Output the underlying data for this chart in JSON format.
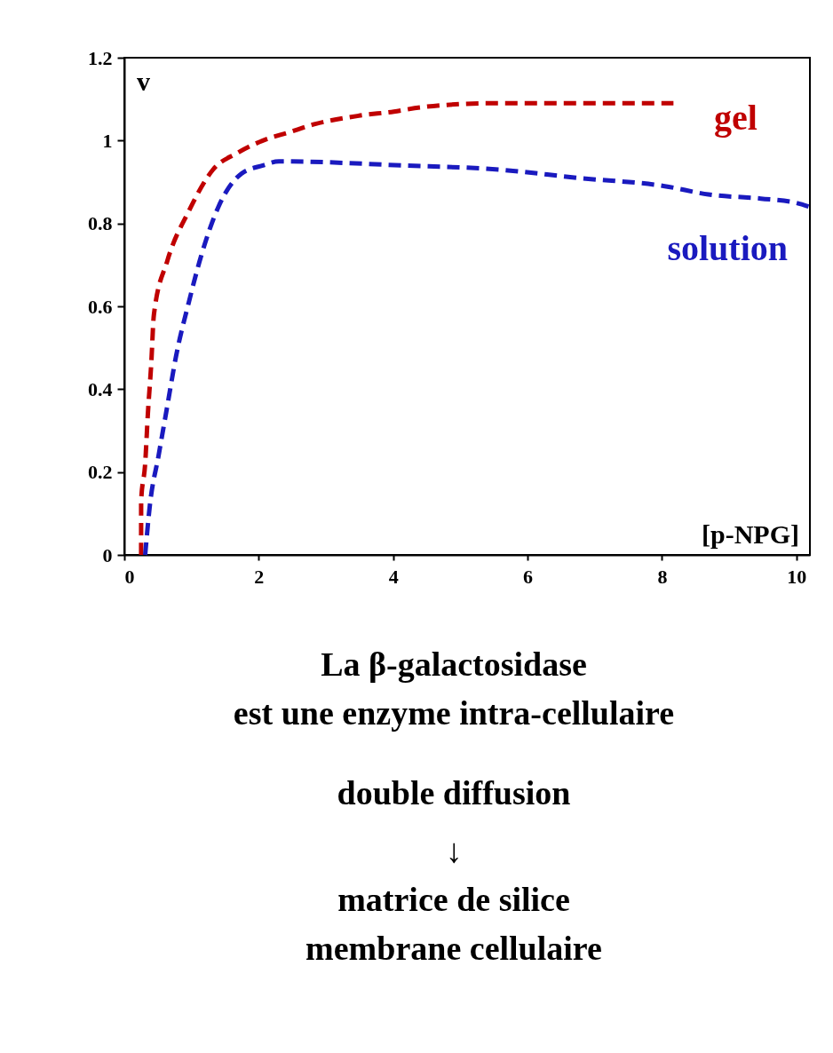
{
  "chart_data": {
    "type": "line",
    "xlabel": "[p-NPG]",
    "ylabel": "v",
    "xlim": [
      0,
      10.2
    ],
    "xticks": [
      0,
      2,
      4,
      6,
      8,
      10
    ],
    "ylim": [
      0,
      1.2
    ],
    "yticks": [
      0,
      0.2,
      0.4,
      0.6,
      0.8,
      1,
      1.2
    ],
    "grid": false,
    "legend": false,
    "line_style": "dashed",
    "marker": "none",
    "series": [
      {
        "name": "gel",
        "color": "#c00000",
        "x": [
          0.25,
          0.25,
          0.31,
          0.35,
          0.4,
          0.44,
          0.64,
          0.96,
          1.32,
          1.68,
          2.06,
          2.45,
          2.84,
          3.49,
          4.01,
          4.4,
          5.44,
          8.17
        ],
        "values": [
          0,
          0.13,
          0.22,
          0.34,
          0.46,
          0.58,
          0.71,
          0.83,
          0.93,
          0.97,
          1.0,
          1.02,
          1.04,
          1.06,
          1.07,
          1.08,
          1.09,
          1.09
        ]
      },
      {
        "name": "solution",
        "color": "#1a1abf",
        "x": [
          0.31,
          0.38,
          0.51,
          0.64,
          0.77,
          0.96,
          1.14,
          1.4,
          1.74,
          2.06,
          2.3,
          4.14,
          5.57,
          6.74,
          8.04,
          8.69,
          9.47,
          9.99,
          10.2
        ],
        "values": [
          0,
          0.12,
          0.24,
          0.36,
          0.48,
          0.61,
          0.72,
          0.84,
          0.92,
          0.94,
          0.95,
          0.94,
          0.93,
          0.91,
          0.89,
          0.87,
          0.86,
          0.85,
          0.84
        ]
      }
    ],
    "annotations": [
      "La β-galactosidase",
      "est une enzyme intra-cellulaire",
      "double diffusion",
      "↓",
      "matrice de silice",
      "membrane cellulaire"
    ]
  }
}
